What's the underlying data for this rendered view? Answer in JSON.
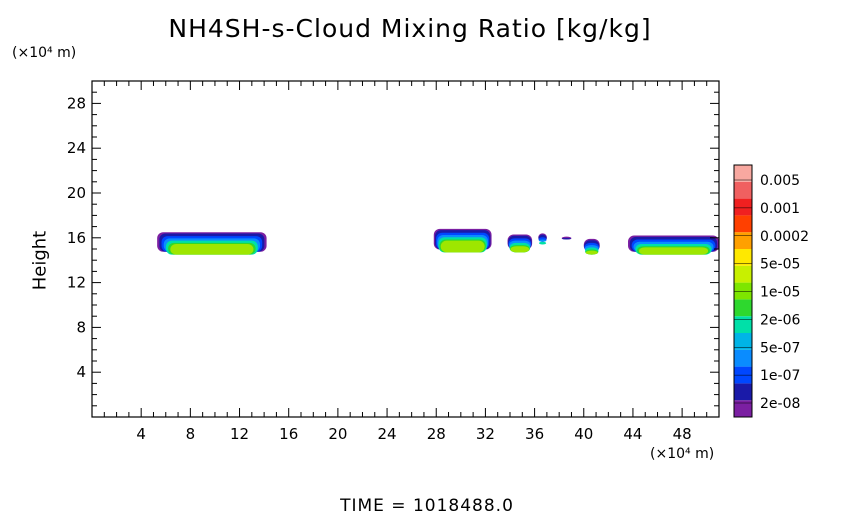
{
  "chart_data": {
    "type": "heatmap",
    "title": "NH4SH-s-Cloud Mixing Ratio [kg/kg]",
    "ylabel": "Height",
    "y_unit": "(×10⁴ m)",
    "x_unit": "(×10⁴ m)",
    "xlim": [
      0,
      51
    ],
    "ylim": [
      0,
      30
    ],
    "x_ticks": [
      "4",
      "8",
      "12",
      "16",
      "20",
      "24",
      "28",
      "32",
      "36",
      "40",
      "44",
      "48"
    ],
    "y_ticks": [
      "4",
      "8",
      "12",
      "16",
      "20",
      "24",
      "28"
    ],
    "colorbar": {
      "labels": [
        "0.005",
        "0.001",
        "0.0002",
        "5e-05",
        "1e-05",
        "2e-06",
        "5e-07",
        "1e-07",
        "2e-08"
      ],
      "colors": [
        "#7b1fa2",
        "#1a1aa8",
        "#0047ff",
        "#0a8cff",
        "#00b4e6",
        "#00e0a8",
        "#2ed82e",
        "#7ee600",
        "#c8f000",
        "#ffe800",
        "#ffa000",
        "#ff4000",
        "#f02020",
        "#f06060",
        "#f8a8a0"
      ]
    },
    "cloud_regions": [
      {
        "x_start": 5.3,
        "x_end": 14.2,
        "y_min": 14.5,
        "y_max": 16.5
      },
      {
        "x_start": 27.8,
        "x_end": 32.5,
        "y_min": 14.7,
        "y_max": 16.8
      },
      {
        "x_start": 33.8,
        "x_end": 35.8,
        "y_min": 14.7,
        "y_max": 16.3
      },
      {
        "x_start": 36.3,
        "x_end": 37.0,
        "y_min": 15.4,
        "y_max": 16.4
      },
      {
        "x_start": 38.2,
        "x_end": 39.0,
        "y_min": 15.6,
        "y_max": 16.1
      },
      {
        "x_start": 40.0,
        "x_end": 41.3,
        "y_min": 14.5,
        "y_max": 15.9
      },
      {
        "x_start": 43.6,
        "x_end": 51.0,
        "y_min": 14.5,
        "y_max": 16.2
      }
    ],
    "time_label": "TIME  =  1018488.0"
  }
}
